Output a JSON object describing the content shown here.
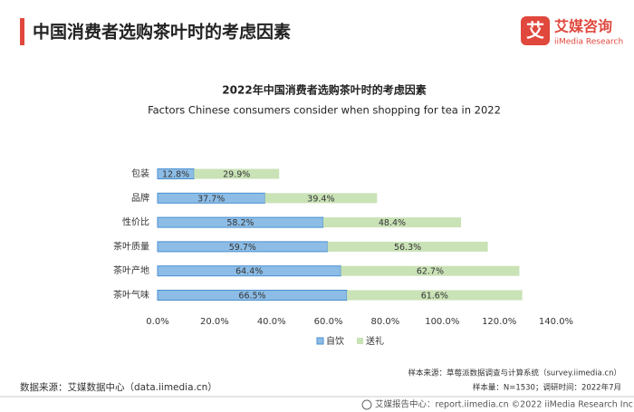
{
  "header": {
    "title": "中国消费者选购茶叶时的考虑因素",
    "logo_mark": "艾",
    "logo_name": "艾媒咨询",
    "logo_sub": "iiMedia Research"
  },
  "chart_data": {
    "type": "stacked-hbar",
    "title": "2022年中国消费者选购茶叶时的考虑因素",
    "subtitle": "Factors Chinese consumers consider when shopping for tea in 2022",
    "categories": [
      "包装",
      "品牌",
      "性价比",
      "茶叶质量",
      "茶叶产地",
      "茶叶气味"
    ],
    "series": [
      {
        "name": "自饮",
        "color": "#8dbde6",
        "values": [
          12.8,
          37.7,
          58.2,
          59.7,
          64.4,
          66.5
        ],
        "value_labels": [
          "12.8%",
          "37.7%",
          "58.2%",
          "59.7%",
          "64.4%",
          "66.5%"
        ]
      },
      {
        "name": "送礼",
        "color": "#c9e2b6",
        "values": [
          29.9,
          39.4,
          48.4,
          56.3,
          62.7,
          61.6
        ],
        "value_labels": [
          "29.9%",
          "39.4%",
          "48.4%",
          "56.3%",
          "62.7%",
          "61.6%"
        ]
      }
    ],
    "xlim": [
      0,
      140
    ],
    "xticks": [
      {
        "value": 0,
        "label": "0.0%"
      },
      {
        "value": 20,
        "label": "20.0%"
      },
      {
        "value": 40,
        "label": "40.0%"
      },
      {
        "value": 60,
        "label": "60.0%"
      },
      {
        "value": 80,
        "label": "80.0%"
      },
      {
        "value": 100,
        "label": "100.0%"
      },
      {
        "value": 120,
        "label": "120.0%"
      },
      {
        "value": 140,
        "label": "140.0%"
      }
    ],
    "legend": "bottom"
  },
  "footer": {
    "source": "数据来源：艾媒数据中心（data.iimedia.cn）",
    "sample_source": "样本来源：草莓派数据调查与计算系统（survey.iimedia.cn）",
    "sample_size": "样本量：N=1530；调研时间：2022年7月",
    "report": "艾媒报告中心：report.iimedia.cn  ©2022  iiMedia Research  Inc"
  }
}
